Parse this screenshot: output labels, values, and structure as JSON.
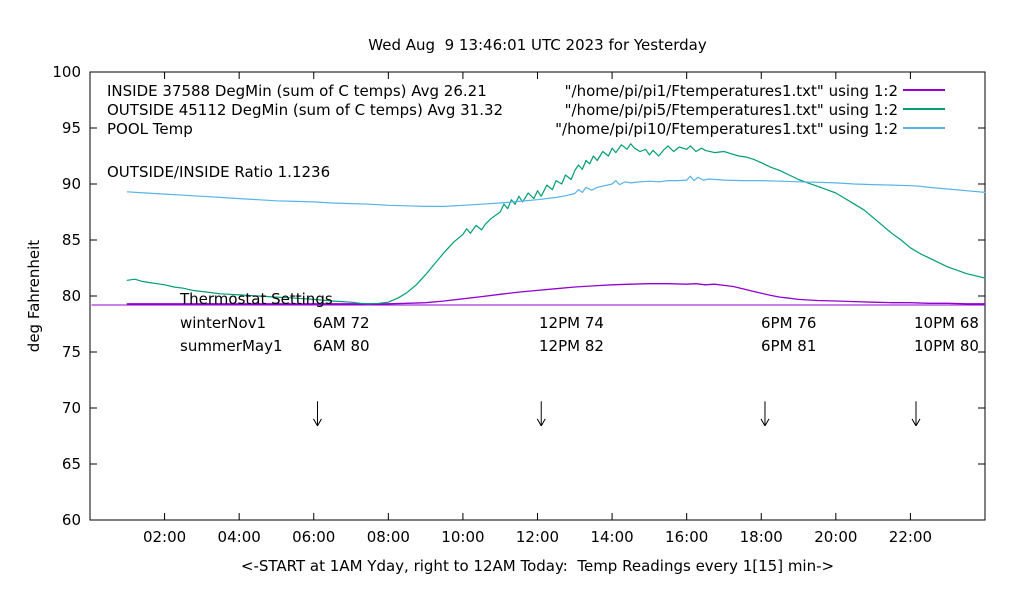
{
  "legend": {
    "rows": [
      {
        "label": "INSIDE 37588 DegMin (sum of C temps) Avg 26.21",
        "file": "\"/home/pi/pi1/Ftemperatures1.txt\" using 1:2",
        "color": "#9400d3"
      },
      {
        "label": "OUTSIDE 45112 DegMin (sum of C temps) Avg 31.32",
        "file": "\"/home/pi/pi5/Ftemperatures1.txt\" using 1:2",
        "color": "#009e73"
      },
      {
        "label": "POOL Temp",
        "file": "\"/home/pi/pi10/Ftemperatures1.txt\" using 1:2",
        "color": "#56b4e9"
      }
    ]
  },
  "ratio_text": "OUTSIDE/INSIDE Ratio 1.1236",
  "thermostat": {
    "heading": "Thermostat Settings",
    "rows": [
      {
        "name": "winterNov1",
        "c1": "6AM 72",
        "c2": "12PM 74",
        "c3": "6PM 76",
        "c4": "10PM 68"
      },
      {
        "name": "summerMay1",
        "c1": "6AM 80",
        "c2": "12PM 82",
        "c3": "6PM 81",
        "c4": "10PM 80"
      }
    ]
  },
  "chart_data": {
    "type": "line",
    "title": "Wed Aug  9 13:46:01 UTC 2023 for Yesterday",
    "xlabel": "<-START at 1AM Yday, right to 12AM Today:  Temp Readings every 1[15] min->",
    "ylabel": "deg Fahrenheit",
    "x_range": [
      0,
      24
    ],
    "y_range": [
      60,
      100
    ],
    "grid": false,
    "legend_position": "top-right-inside",
    "x_ticks": [
      {
        "v": 2,
        "label": "02:00"
      },
      {
        "v": 4,
        "label": "04:00"
      },
      {
        "v": 6,
        "label": "06:00"
      },
      {
        "v": 8,
        "label": "08:00"
      },
      {
        "v": 10,
        "label": "10:00"
      },
      {
        "v": 12,
        "label": "12:00"
      },
      {
        "v": 14,
        "label": "14:00"
      },
      {
        "v": 16,
        "label": "16:00"
      },
      {
        "v": 18,
        "label": "18:00"
      },
      {
        "v": 20,
        "label": "20:00"
      },
      {
        "v": 22,
        "label": "22:00"
      }
    ],
    "y_ticks": [
      60,
      65,
      70,
      75,
      80,
      85,
      90,
      95,
      100
    ],
    "arrows": {
      "hours": [
        6.1,
        12.1,
        18.1,
        22.15
      ],
      "y_from": 70.6,
      "y_to": 68.4
    },
    "series": [
      {
        "name": "inside-avg-line",
        "color": "#9400d3",
        "width": 1,
        "points": [
          [
            0.05,
            79.2
          ],
          [
            23.97,
            79.2
          ]
        ]
      },
      {
        "name": "INSIDE",
        "color": "#9400d3",
        "width": 1.3,
        "points": [
          [
            1,
            79.3
          ],
          [
            2,
            79.3
          ],
          [
            3,
            79.3
          ],
          [
            4,
            79.3
          ],
          [
            5,
            79.3
          ],
          [
            6,
            79.3
          ],
          [
            7,
            79.3
          ],
          [
            8,
            79.3
          ],
          [
            8.5,
            79.35
          ],
          [
            9,
            79.4
          ],
          [
            9.5,
            79.55
          ],
          [
            10,
            79.75
          ],
          [
            10.5,
            79.95
          ],
          [
            11,
            80.15
          ],
          [
            11.5,
            80.35
          ],
          [
            12,
            80.5
          ],
          [
            12.5,
            80.65
          ],
          [
            13,
            80.8
          ],
          [
            13.5,
            80.9
          ],
          [
            14,
            81.0
          ],
          [
            14.5,
            81.05
          ],
          [
            15,
            81.1
          ],
          [
            15.5,
            81.1
          ],
          [
            16,
            81.05
          ],
          [
            16.25,
            81.1
          ],
          [
            16.5,
            81.0
          ],
          [
            16.75,
            81.05
          ],
          [
            17,
            80.95
          ],
          [
            17.25,
            80.85
          ],
          [
            17.5,
            80.65
          ],
          [
            17.75,
            80.45
          ],
          [
            18,
            80.25
          ],
          [
            18.25,
            80.05
          ],
          [
            18.5,
            79.9
          ],
          [
            18.75,
            79.8
          ],
          [
            19,
            79.7
          ],
          [
            19.5,
            79.6
          ],
          [
            20,
            79.55
          ],
          [
            20.5,
            79.5
          ],
          [
            21,
            79.45
          ],
          [
            21.5,
            79.4
          ],
          [
            22,
            79.4
          ],
          [
            22.5,
            79.35
          ],
          [
            23,
            79.35
          ],
          [
            23.5,
            79.3
          ],
          [
            24,
            79.3
          ]
        ]
      },
      {
        "name": "OUTSIDE",
        "color": "#009e73",
        "width": 1.2,
        "points": [
          [
            1,
            81.4
          ],
          [
            1.2,
            81.5
          ],
          [
            1.4,
            81.3
          ],
          [
            1.6,
            81.2
          ],
          [
            1.8,
            81.1
          ],
          [
            2,
            81.0
          ],
          [
            2.25,
            80.8
          ],
          [
            2.5,
            80.7
          ],
          [
            2.75,
            80.5
          ],
          [
            3,
            80.4
          ],
          [
            3.25,
            80.3
          ],
          [
            3.5,
            80.2
          ],
          [
            3.75,
            80.15
          ],
          [
            4,
            80.1
          ],
          [
            4.5,
            80.0
          ],
          [
            5,
            79.9
          ],
          [
            5.5,
            79.8
          ],
          [
            6,
            79.7
          ],
          [
            6.5,
            79.55
          ],
          [
            7,
            79.45
          ],
          [
            7.25,
            79.35
          ],
          [
            7.5,
            79.3
          ],
          [
            7.75,
            79.35
          ],
          [
            8,
            79.45
          ],
          [
            8.25,
            79.8
          ],
          [
            8.5,
            80.3
          ],
          [
            8.75,
            81.0
          ],
          [
            9,
            81.9
          ],
          [
            9.25,
            82.9
          ],
          [
            9.5,
            83.9
          ],
          [
            9.75,
            84.8
          ],
          [
            10,
            85.5
          ],
          [
            10.1,
            86.0
          ],
          [
            10.2,
            85.6
          ],
          [
            10.35,
            86.3
          ],
          [
            10.5,
            85.9
          ],
          [
            10.6,
            86.4
          ],
          [
            10.75,
            86.9
          ],
          [
            11,
            87.5
          ],
          [
            11.1,
            88.2
          ],
          [
            11.2,
            87.8
          ],
          [
            11.3,
            88.6
          ],
          [
            11.4,
            88.2
          ],
          [
            11.5,
            88.9
          ],
          [
            11.6,
            88.4
          ],
          [
            11.75,
            89.2
          ],
          [
            11.9,
            88.7
          ],
          [
            12,
            89.4
          ],
          [
            12.1,
            88.9
          ],
          [
            12.25,
            89.9
          ],
          [
            12.4,
            89.5
          ],
          [
            12.5,
            90.3
          ],
          [
            12.65,
            90.0
          ],
          [
            12.75,
            90.8
          ],
          [
            12.9,
            90.4
          ],
          [
            13,
            91.2
          ],
          [
            13.1,
            91.7
          ],
          [
            13.2,
            91.3
          ],
          [
            13.3,
            92.1
          ],
          [
            13.4,
            91.8
          ],
          [
            13.5,
            92.5
          ],
          [
            13.6,
            92.1
          ],
          [
            13.75,
            92.9
          ],
          [
            13.9,
            92.5
          ],
          [
            14,
            93.2
          ],
          [
            14.1,
            92.8
          ],
          [
            14.25,
            93.5
          ],
          [
            14.4,
            93.1
          ],
          [
            14.5,
            93.6
          ],
          [
            14.6,
            93.2
          ],
          [
            14.75,
            92.9
          ],
          [
            14.9,
            93.1
          ],
          [
            15,
            92.6
          ],
          [
            15.1,
            93.0
          ],
          [
            15.25,
            92.5
          ],
          [
            15.4,
            93.1
          ],
          [
            15.5,
            93.4
          ],
          [
            15.65,
            92.9
          ],
          [
            15.8,
            93.3
          ],
          [
            16,
            93.1
          ],
          [
            16.1,
            93.4
          ],
          [
            16.25,
            92.9
          ],
          [
            16.4,
            93.2
          ],
          [
            16.5,
            93.0
          ],
          [
            16.75,
            92.8
          ],
          [
            17,
            92.9
          ],
          [
            17.2,
            92.7
          ],
          [
            17.4,
            92.5
          ],
          [
            17.6,
            92.4
          ],
          [
            17.8,
            92.2
          ],
          [
            18,
            91.9
          ],
          [
            18.25,
            91.5
          ],
          [
            18.5,
            91.2
          ],
          [
            18.75,
            90.8
          ],
          [
            19,
            90.4
          ],
          [
            19.25,
            90.1
          ],
          [
            19.5,
            89.8
          ],
          [
            19.75,
            89.5
          ],
          [
            20,
            89.2
          ],
          [
            20.25,
            88.7
          ],
          [
            20.5,
            88.2
          ],
          [
            20.75,
            87.7
          ],
          [
            21,
            87.0
          ],
          [
            21.25,
            86.3
          ],
          [
            21.5,
            85.6
          ],
          [
            21.75,
            85.0
          ],
          [
            22,
            84.3
          ],
          [
            22.25,
            83.8
          ],
          [
            22.5,
            83.4
          ],
          [
            22.75,
            83.0
          ],
          [
            23,
            82.6
          ],
          [
            23.25,
            82.3
          ],
          [
            23.5,
            82.0
          ],
          [
            23.75,
            81.8
          ],
          [
            24,
            81.6
          ]
        ]
      },
      {
        "name": "POOL",
        "color": "#56b4e9",
        "width": 1.2,
        "points": [
          [
            1,
            89.3
          ],
          [
            1.5,
            89.2
          ],
          [
            2,
            89.1
          ],
          [
            2.5,
            89.0
          ],
          [
            3,
            88.9
          ],
          [
            3.5,
            88.8
          ],
          [
            4,
            88.7
          ],
          [
            4.5,
            88.6
          ],
          [
            5,
            88.5
          ],
          [
            5.5,
            88.45
          ],
          [
            6,
            88.4
          ],
          [
            6.5,
            88.3
          ],
          [
            7,
            88.25
          ],
          [
            7.5,
            88.2
          ],
          [
            8,
            88.1
          ],
          [
            8.5,
            88.05
          ],
          [
            9,
            88.0
          ],
          [
            9.5,
            88.0
          ],
          [
            10,
            88.1
          ],
          [
            10.5,
            88.2
          ],
          [
            11,
            88.3
          ],
          [
            11.5,
            88.45
          ],
          [
            12,
            88.6
          ],
          [
            12.5,
            88.8
          ],
          [
            12.75,
            88.95
          ],
          [
            13,
            89.15
          ],
          [
            13.1,
            89.5
          ],
          [
            13.2,
            89.25
          ],
          [
            13.3,
            89.7
          ],
          [
            13.45,
            89.45
          ],
          [
            13.6,
            89.7
          ],
          [
            13.8,
            89.85
          ],
          [
            14,
            90.0
          ],
          [
            14.1,
            90.3
          ],
          [
            14.2,
            89.95
          ],
          [
            14.35,
            90.2
          ],
          [
            14.5,
            90.1
          ],
          [
            14.75,
            90.2
          ],
          [
            15,
            90.25
          ],
          [
            15.25,
            90.2
          ],
          [
            15.5,
            90.3
          ],
          [
            15.75,
            90.3
          ],
          [
            16,
            90.35
          ],
          [
            16.1,
            90.7
          ],
          [
            16.2,
            90.3
          ],
          [
            16.3,
            90.6
          ],
          [
            16.45,
            90.35
          ],
          [
            16.6,
            90.45
          ],
          [
            17,
            90.35
          ],
          [
            17.5,
            90.3
          ],
          [
            18,
            90.3
          ],
          [
            18.5,
            90.25
          ],
          [
            19,
            90.2
          ],
          [
            19.5,
            90.15
          ],
          [
            20,
            90.1
          ],
          [
            20.5,
            90.0
          ],
          [
            21,
            89.95
          ],
          [
            21.5,
            89.9
          ],
          [
            22,
            89.85
          ],
          [
            22.25,
            89.8
          ],
          [
            22.5,
            89.7
          ],
          [
            23,
            89.55
          ],
          [
            23.5,
            89.4
          ],
          [
            24,
            89.25
          ]
        ]
      }
    ]
  }
}
